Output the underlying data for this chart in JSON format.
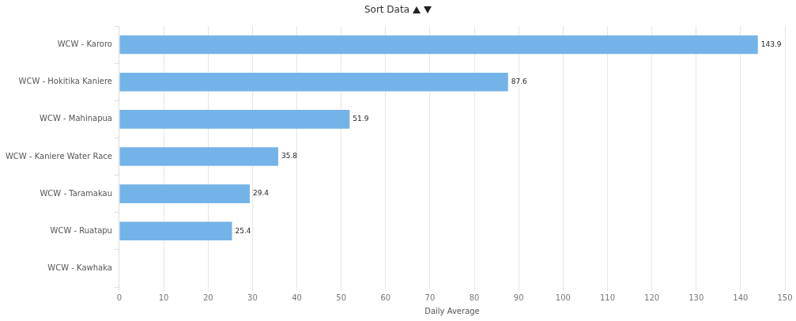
{
  "chart_data": {
    "type": "bar",
    "orientation": "horizontal",
    "title": "Sort Data",
    "xlabel": "Daily Average",
    "categories": [
      "WCW - Karoro",
      "WCW - Hokitika Kaniere",
      "WCW - Mahinapua",
      "WCW - Kaniere Water Race",
      "WCW - Taramakau",
      "WCW - Ruatapu",
      "WCW - Kawhaka"
    ],
    "values": [
      143.9,
      87.6,
      51.9,
      35.8,
      29.4,
      25.4,
      null
    ],
    "color": "#74b3e8",
    "xlim": [
      0,
      150
    ],
    "xticks": [
      0,
      10,
      20,
      30,
      40,
      50,
      60,
      70,
      80,
      90,
      100,
      110,
      120,
      130,
      140,
      150
    ],
    "grid": "x",
    "data_labels": true,
    "legend": false
  }
}
